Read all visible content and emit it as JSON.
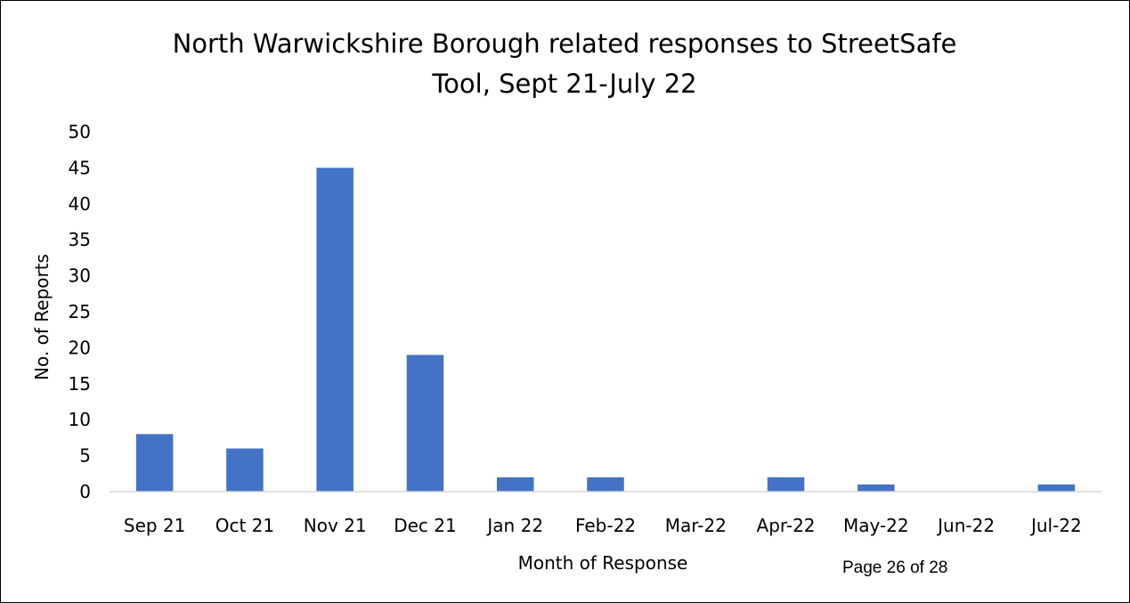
{
  "chart_data": {
    "type": "bar",
    "title_lines": [
      "North Warwickshire Borough related responses to StreetSafe",
      "Tool, Sept 21-July 22"
    ],
    "xlabel": "Month of Response",
    "ylabel": "No. of Reports",
    "categories": [
      "Sep 21",
      "Oct 21",
      "Nov 21",
      "Dec 21",
      "Jan 22",
      "Feb-22",
      "Mar-22",
      "Apr-22",
      "May-22",
      "Jun-22",
      "Jul-22"
    ],
    "values": [
      8,
      6,
      45,
      19,
      2,
      2,
      0,
      2,
      1,
      0,
      1
    ],
    "ylim": [
      0,
      50
    ],
    "yticks": [
      0,
      5,
      10,
      15,
      20,
      25,
      30,
      35,
      40,
      45,
      50
    ],
    "grid": false,
    "legend": "none",
    "bar_color": "#4472C4"
  },
  "footer": {
    "page_label": "Page 26 of 28"
  }
}
